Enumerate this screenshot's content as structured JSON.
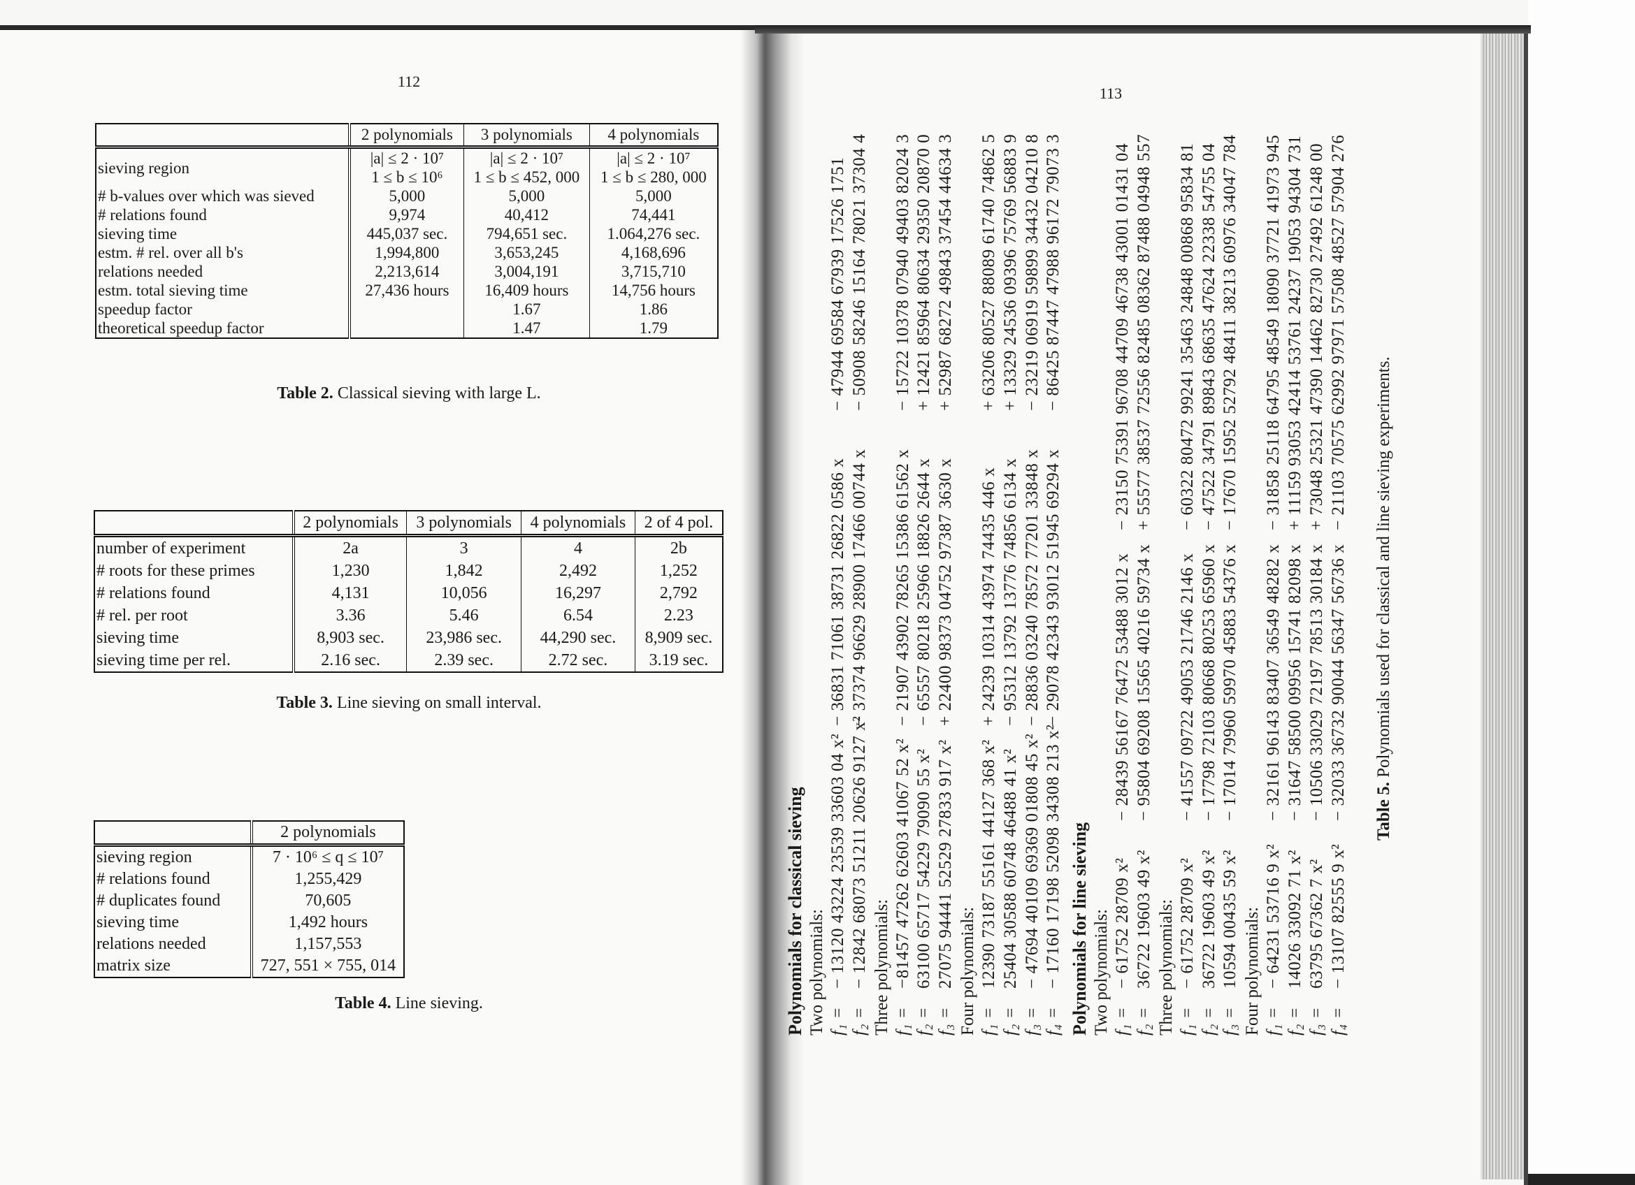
{
  "left_page": {
    "page_number": "112",
    "table2": {
      "headers": [
        "",
        "2 polynomials",
        "3 polynomials",
        "4 polynomials"
      ],
      "rows": [
        {
          "label": "sieving region\n ",
          "cells": [
            "|a| ≤ 2 · 10⁷\n1 ≤ b ≤ 10⁶",
            "|a| ≤ 2 · 10⁷\n1 ≤ b ≤ 452, 000",
            "|a| ≤ 2 · 10⁷\n1 ≤ b ≤ 280, 000"
          ]
        },
        {
          "label": "# b-values over which was sieved",
          "cells": [
            "5,000",
            "5,000",
            "5,000"
          ]
        },
        {
          "label": "# relations found",
          "cells": [
            "9,974",
            "40,412",
            "74,441"
          ]
        },
        {
          "label": "sieving time",
          "cells": [
            "445,037 sec.",
            "794,651 sec.",
            "1.064,276 sec."
          ]
        },
        {
          "label": "estm. # rel. over all b's",
          "cells": [
            "1,994,800",
            "3,653,245",
            "4,168,696"
          ]
        },
        {
          "label": "relations needed",
          "cells": [
            "2,213,614",
            "3,004,191",
            "3,715,710"
          ]
        },
        {
          "label": "estm. total sieving time",
          "cells": [
            "27,436 hours",
            "16,409 hours",
            "14,756 hours"
          ]
        },
        {
          "label": "speedup factor",
          "cells": [
            "",
            "1.67",
            "1.86"
          ]
        },
        {
          "label": "theoretical speedup factor",
          "cells": [
            "",
            "1.47",
            "1.79"
          ]
        }
      ],
      "caption_label": "Table 2.",
      "caption_text": "Classical sieving with large L."
    },
    "table3": {
      "headers": [
        "",
        "2 polynomials",
        "3 polynomials",
        "4 polynomials",
        "2 of 4 pol."
      ],
      "rows": [
        {
          "label": "number of experiment",
          "cells": [
            "2a",
            "3",
            "4",
            "2b"
          ]
        },
        {
          "label": "# roots for these primes",
          "cells": [
            "1,230",
            "1,842",
            "2,492",
            "1,252"
          ]
        },
        {
          "label": "# relations found",
          "cells": [
            "4,131",
            "10,056",
            "16,297",
            "2,792"
          ]
        },
        {
          "label": "# rel. per root",
          "cells": [
            "3.36",
            "5.46",
            "6.54",
            "2.23"
          ]
        },
        {
          "label": "sieving time",
          "cells": [
            "8,903 sec.",
            "23,986 sec.",
            "44,290 sec.",
            "8,909 sec."
          ]
        },
        {
          "label": "sieving time per rel.",
          "cells": [
            "2.16 sec.",
            "2.39 sec.",
            "2.72 sec.",
            "3.19 sec."
          ]
        }
      ],
      "caption_label": "Table 3.",
      "caption_text": "Line sieving on small interval."
    },
    "table4": {
      "headers": [
        "",
        "2 polynomials"
      ],
      "rows": [
        {
          "label": "sieving region",
          "cells": [
            "7 · 10⁶ ≤ q ≤ 10⁷"
          ]
        },
        {
          "label": "# relations found",
          "cells": [
            "1,255,429"
          ]
        },
        {
          "label": "# duplicates found",
          "cells": [
            "70,605"
          ]
        },
        {
          "label": "sieving time",
          "cells": [
            "1,492 hours"
          ]
        },
        {
          "label": "relations needed",
          "cells": [
            "1,157,553"
          ]
        },
        {
          "label": "matrix size",
          "cells": [
            "727, 551 × 755, 014"
          ]
        }
      ],
      "caption_label": "Table 4.",
      "caption_text": "Line sieving."
    }
  },
  "right_page": {
    "page_number": "113",
    "sections": [
      {
        "heading": "Polynomials for classical sieving",
        "style": "classical",
        "groups": [
          {
            "label": "Two polynomials:",
            "rows": [
              {
                "name": "f₁ =",
                "a": "− 13120 43224 23539 33603 04 x²",
                "b": "− 36831 71061 38731 26822 0586 x",
                "c": "− 47944 69584 67939 17526 1751"
              },
              {
                "name": "f₂ =",
                "a": "− 12842 68073 51211 20626 9127 x²",
                "b": "− 37374 96629 28900 17466 00744 x",
                "c": "− 50908 58246 15164 78021 37304 4"
              }
            ]
          },
          {
            "label": "Three polynomials:",
            "rows": [
              {
                "name": "f₁ =",
                "a": "−81457 47262 62603 41067 52 x²",
                "b": "− 21907 43902 78265 15386 61562 x",
                "c": "− 15722 10378 07940 49403 82024 3"
              },
              {
                "name": "f₂ =",
                "a": "   63100 65717 54229 79090 55 x²",
                "b": "− 65557 80218 25966 18826 2644 x",
                "c": "+ 12421 85964 80634 29350 20870 0"
              },
              {
                "name": "f₃ =",
                "a": "   27075 94441 52529 27833 917 x²",
                "b": "+ 22400 98373 04752 97387 3630 x",
                "c": "+ 52987 68272 49843 37454 44634 3"
              }
            ]
          },
          {
            "label": "Four polynomials:",
            "rows": [
              {
                "name": "f₁ =",
                "a": "   12390 73187 55161 44127 368 x²",
                "b": "+ 24239 10314 43974 74435 446 x",
                "c": "+ 63206 80527 88089 61740 74862 5"
              },
              {
                "name": "f₂ =",
                "a": "   25404 30588 60748 46488 41 x²",
                "b": "− 95312 13792 13776 74856 6134 x",
                "c": "+ 13329 24536 09396 75769 56883 9"
              },
              {
                "name": "f₃ =",
                "a": "− 47694 40109 69369 01808 45 x²",
                "b": "− 28836 03240 78572 77201 33848 x",
                "c": "− 23219 06919 59899 34432 04210 8"
              },
              {
                "name": "f₄ =",
                "a": "− 17160 17198 52098 34308 213 x²",
                "b": "− 29078 42343 93012 51945 69294 x",
                "c": "− 86425 87447 47988 96172 79073 3"
              }
            ]
          }
        ]
      },
      {
        "heading": "Polynomials for line sieving",
        "style": "line",
        "groups": [
          {
            "label": "Two polynomials:",
            "rows": [
              {
                "name": "f₁ =",
                "a": "− 61752 28709 x²",
                "b": "− 28439 56167 76472 53488 3012 x",
                "c": "− 23150 75391 96708 44709 46738 43001 01431 04"
              },
              {
                "name": "f₂ =",
                "a": "   36722 19603 49 x²",
                "b": "− 95804 69208 15565 40216 59734 x",
                "c": "+ 55577 38537 72556 82485 08362 87488 04948 557"
              }
            ]
          },
          {
            "label": "Three polynomials:",
            "rows": [
              {
                "name": "f₁ =",
                "a": "− 61752 28709 x²",
                "b": "− 41557 09722 49053 21746 2146 x",
                "c": "− 60322 80472 99241 35463 24848 00868 95834 81"
              },
              {
                "name": "f₂ =",
                "a": "   36722 19603 49 x²",
                "b": "− 17798 72103 80668 80253 65960 x",
                "c": "− 47522 34791 89843 68635 47624 22338 54755 04"
              },
              {
                "name": "f₃ =",
                "a": "   10594 00435 59 x²",
                "b": "− 17014 79960 59970 45883 54376 x",
                "c": "− 17670 15952 52792 48411 38213 60976 34047 784"
              }
            ]
          },
          {
            "label": "Four polynomials:",
            "rows": [
              {
                "name": "f₁ =",
                "a": "− 64231 53716 9 x²",
                "b": "− 32161 96143 83407 36549 48282 x",
                "c": "− 31858 25118 64795 48549 18090 37721 41973 945"
              },
              {
                "name": "f₂ =",
                "a": "   14026 33092 71 x²",
                "b": "− 31647 58500 09956 15741 82098 x",
                "c": "+ 11159 93053 42414 53761 24237 19053 94304 731"
              },
              {
                "name": "f₃ =",
                "a": "   63795 67362 7 x²",
                "b": "− 10506 33029 72197 78513 30184 x",
                "c": "+ 73048 25321 47390 14462 82730 27492 61248 00"
              },
              {
                "name": "f₄ =",
                "a": "− 13107 82555 9 x²",
                "b": "− 32033 36732 90044 56347 56736 x",
                "c": "− 21103 70575 62992 97971 57508 48527 57904 276"
              }
            ]
          }
        ]
      }
    ],
    "caption_label": "Table 5.",
    "caption_text": "Polynomials used for classical and line sieving experiments."
  }
}
